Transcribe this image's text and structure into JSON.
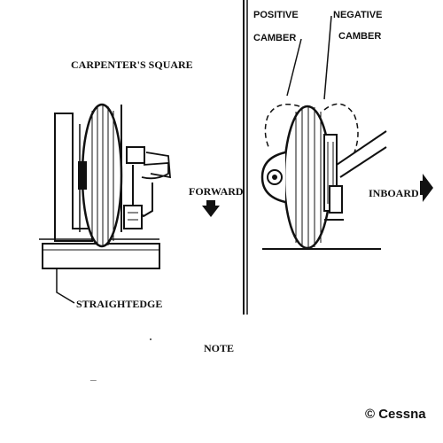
{
  "left_panel": {
    "tool_label": "CARPENTER'S SQUARE",
    "base_label": "STRAIGHTEDGE",
    "direction_label": "FORWARD",
    "arrow_icon": "arrow-down-icon"
  },
  "right_panel": {
    "positive_label_line1": "POSITIVE",
    "positive_label_line2": "CAMBER",
    "negative_label_line1": "NEGATIVE",
    "negative_label_line2": "CAMBER",
    "direction_label": "INBOARD",
    "arrow_icon": "arrow-right-icon"
  },
  "note_label": "NOTE",
  "note_dash": "_",
  "copyright": "© Cessna"
}
